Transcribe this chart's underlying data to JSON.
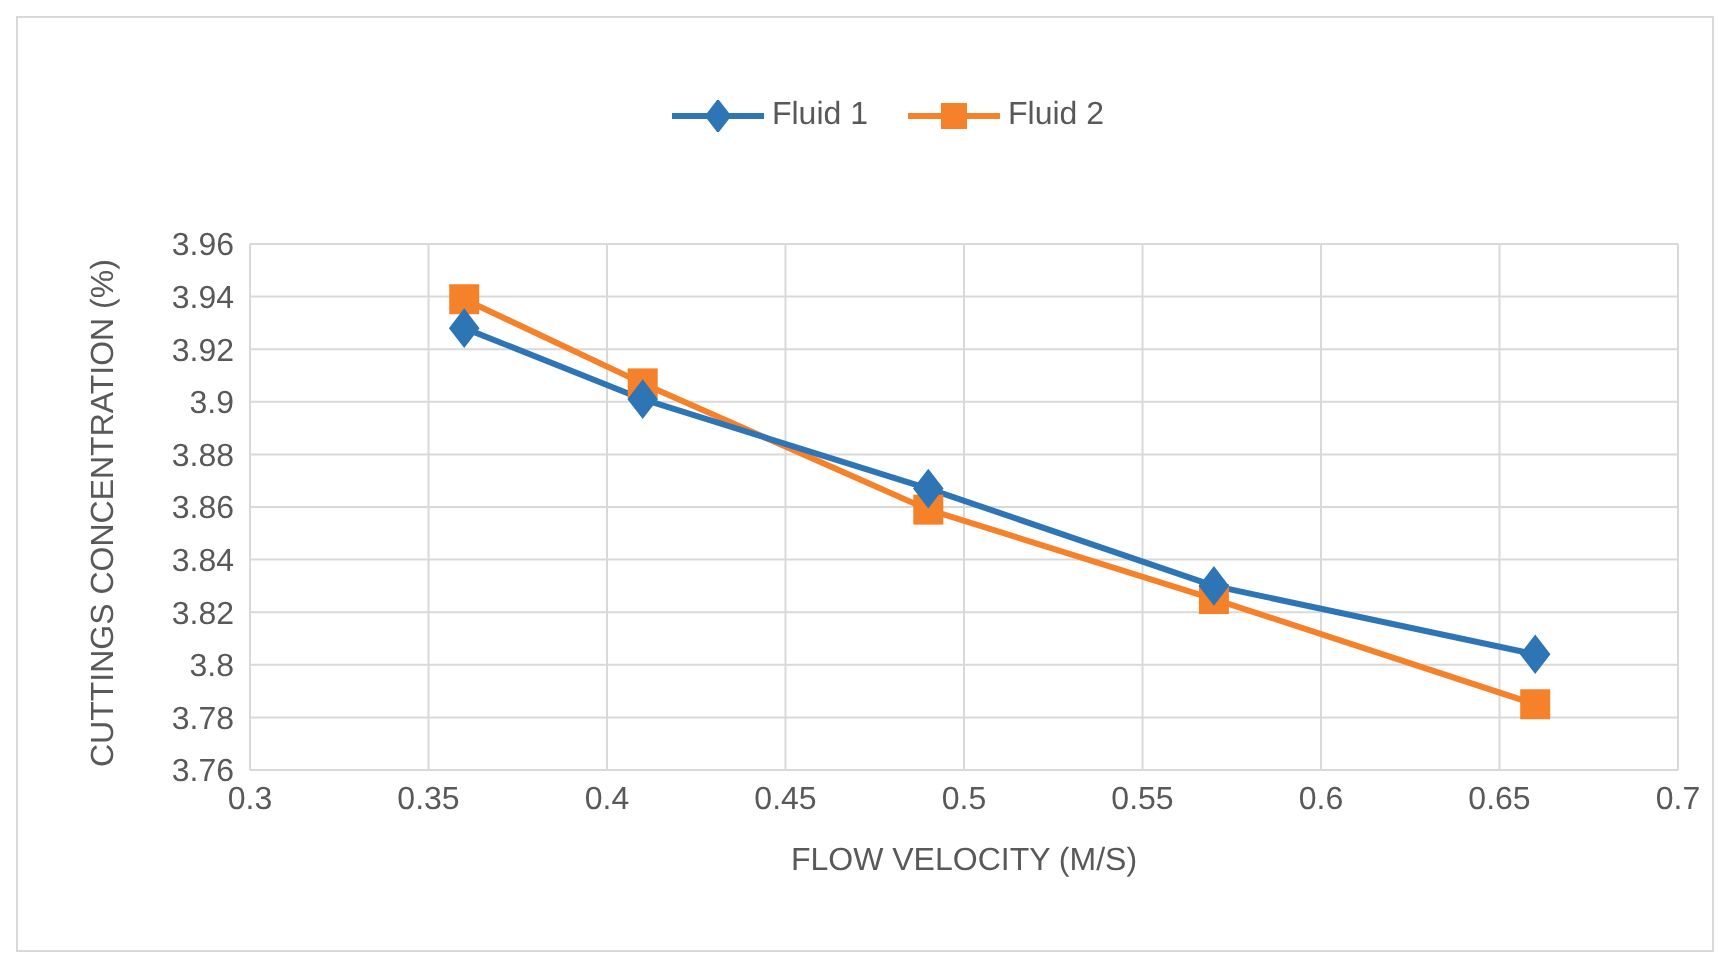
{
  "chart_data": {
    "type": "line",
    "xlabel": "FLOW VELOCITY (M/S)",
    "ylabel": "CUTTINGS CONCENTRATION (%)",
    "x": [
      0.36,
      0.41,
      0.49,
      0.57,
      0.66
    ],
    "series": [
      {
        "name": "Fluid 1",
        "color": "#2e75b6",
        "marker": "diamond",
        "values": [
          3.928,
          3.901,
          3.867,
          3.83,
          3.804
        ]
      },
      {
        "name": "Fluid 2",
        "color": "#f5822a",
        "marker": "square",
        "values": [
          3.939,
          3.907,
          3.859,
          3.825,
          3.785
        ]
      }
    ],
    "xlim": [
      0.3,
      0.7
    ],
    "xticks": [
      0.3,
      0.35,
      0.4,
      0.45,
      0.5,
      0.55,
      0.6,
      0.65,
      0.7
    ],
    "ylim": [
      3.76,
      3.96
    ],
    "yticks": [
      3.76,
      3.78,
      3.8,
      3.82,
      3.84,
      3.86,
      3.88,
      3.9,
      3.92,
      3.94,
      3.96
    ],
    "grid": true,
    "legend": "top",
    "line_style": "solid"
  }
}
